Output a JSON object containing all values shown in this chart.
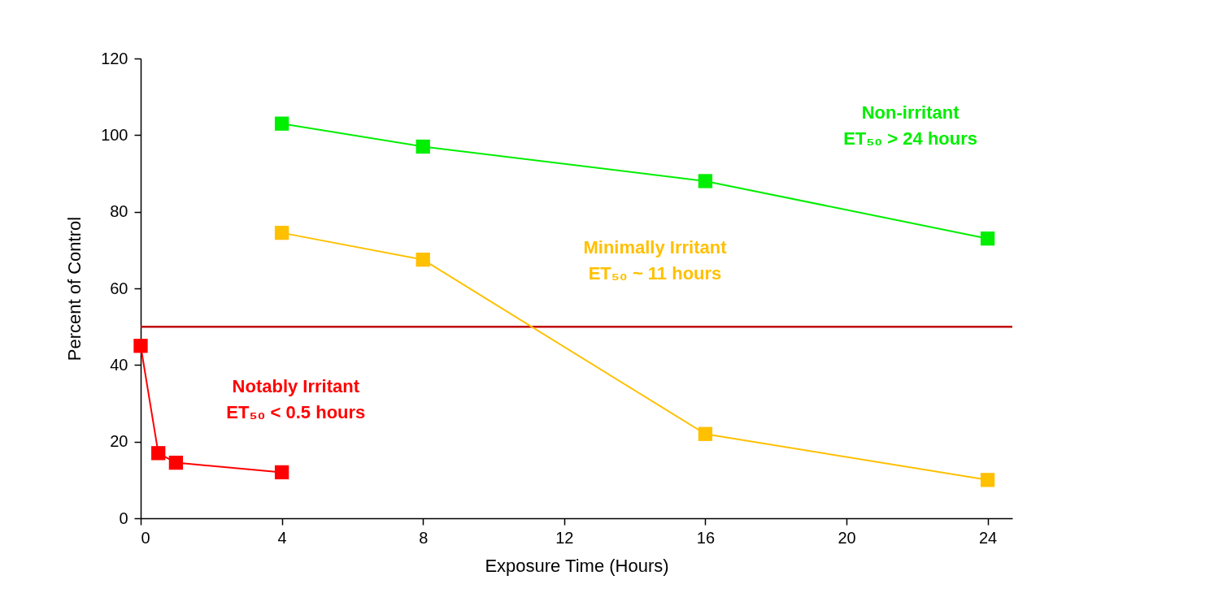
{
  "chart_data": {
    "type": "line",
    "xlabel": "Exposure Time (Hours)",
    "ylabel": "Percent of Control",
    "xlim": [
      0,
      24.7
    ],
    "xticks": [
      0,
      4,
      8,
      12,
      16,
      20,
      24
    ],
    "ylim": [
      0,
      120
    ],
    "yticks": [
      0,
      20,
      40,
      60,
      80,
      100,
      120
    ],
    "grid": false,
    "marker": "square",
    "line_style": "solid",
    "series": [
      {
        "color": "#00ee00",
        "x": [
          4,
          8,
          16,
          24
        ],
        "values": [
          103,
          97,
          88,
          73
        ]
      },
      {
        "color": "#ffc000",
        "x": [
          4,
          8,
          16,
          24
        ],
        "values": [
          74.5,
          67.5,
          22,
          10
        ]
      },
      {
        "color": "#ff0000",
        "x": [
          0,
          0.5,
          1,
          4
        ],
        "values": [
          45,
          17,
          14.5,
          12
        ]
      }
    ],
    "ref_lines": [
      {
        "axis": "y",
        "value": 50,
        "color": "#c00000"
      }
    ],
    "annotations": [
      "Non-irritant\nET₅₀ > 24 hours",
      "Minimally Irritant\nET₅₀ ~ 11 hours",
      "Notably Irritant\nET₅₀ < 0.5 hours"
    ]
  }
}
